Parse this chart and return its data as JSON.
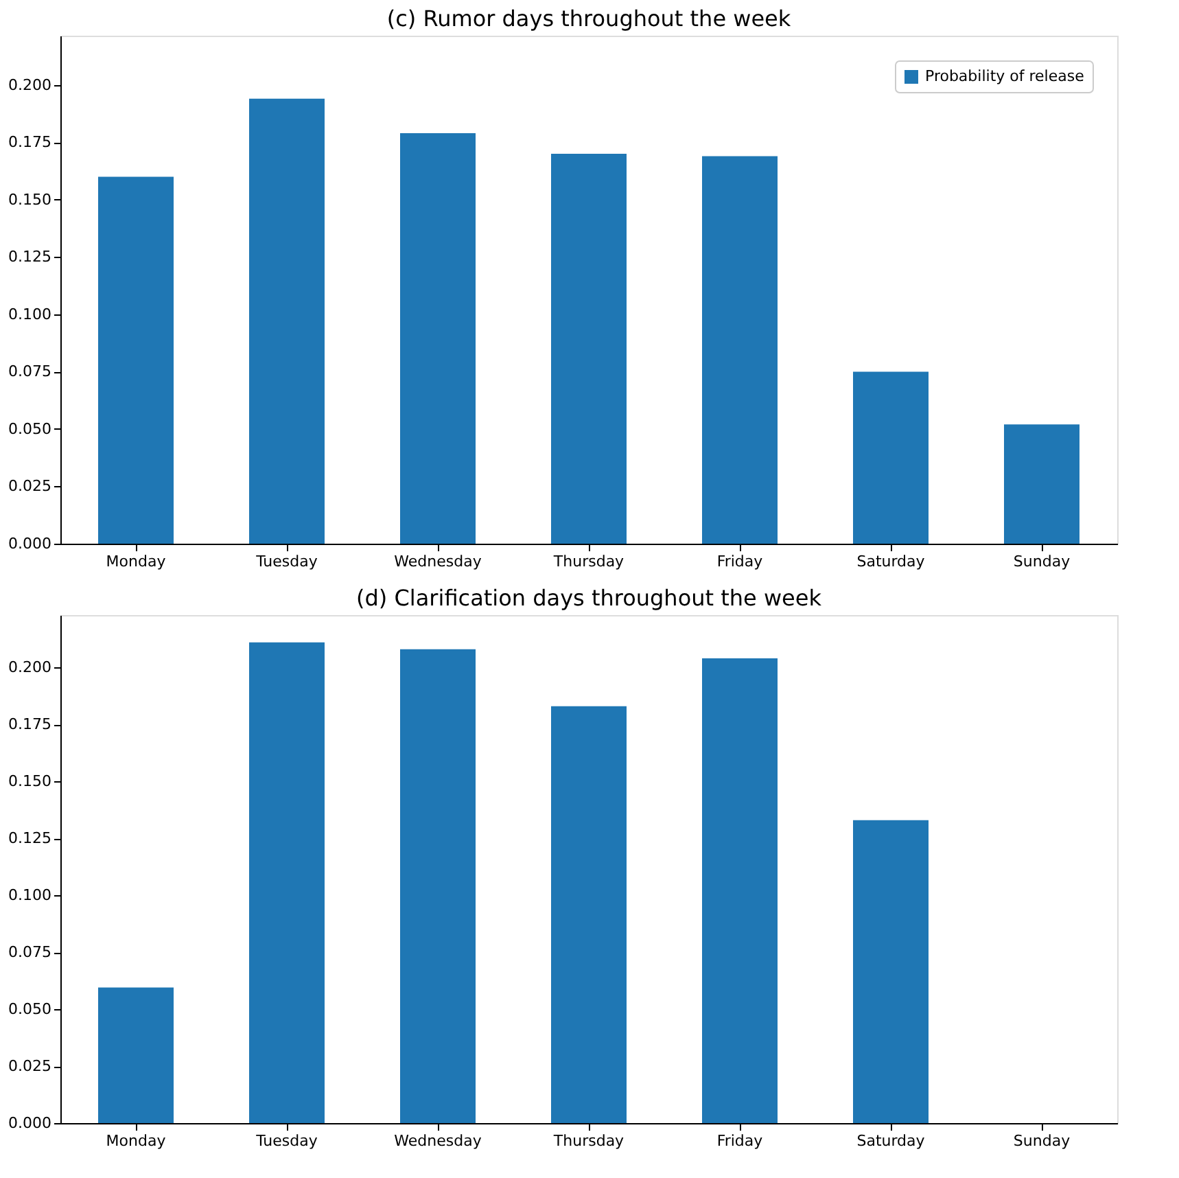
{
  "chart_data": [
    {
      "type": "bar",
      "title": "(c) Rumor days throughout the week",
      "categories": [
        "Monday",
        "Tuesday",
        "Wednesday",
        "Thursday",
        "Friday",
        "Saturday",
        "Sunday"
      ],
      "series": [
        {
          "name": "Probability of release",
          "color": "#1f77b4",
          "values": [
            0.16,
            0.194,
            0.179,
            0.17,
            0.169,
            0.075,
            0.052
          ]
        }
      ],
      "ylim": [
        0,
        0.2215
      ],
      "yticks": [
        {
          "value": 0,
          "label": "0.000"
        },
        {
          "value": 0.025,
          "label": "0.025"
        },
        {
          "value": 0.05,
          "label": "0.050"
        },
        {
          "value": 0.075,
          "label": "0.075"
        },
        {
          "value": 0.1,
          "label": "0.100"
        },
        {
          "value": 0.125,
          "label": "0.125"
        },
        {
          "value": 0.15,
          "label": "0.150"
        },
        {
          "value": 0.175,
          "label": "0.175"
        },
        {
          "value": 0.2,
          "label": "0.200"
        }
      ],
      "grid": false,
      "legend": "top right"
    },
    {
      "type": "bar",
      "title": "(d) Clarification days throughout the week",
      "categories": [
        "Monday",
        "Tuesday",
        "Wednesday",
        "Thursday",
        "Friday",
        "Saturday",
        "Sunday"
      ],
      "series": [
        {
          "name": "Probability of release",
          "color": "#1f77b4",
          "values": [
            0.0595,
            0.211,
            0.208,
            0.183,
            0.204,
            0.133,
            null
          ]
        }
      ],
      "ylim": [
        0,
        0.223
      ],
      "yticks": [
        {
          "value": 0,
          "label": "0.000"
        },
        {
          "value": 0.025,
          "label": "0.025"
        },
        {
          "value": 0.05,
          "label": "0.050"
        },
        {
          "value": 0.075,
          "label": "0.075"
        },
        {
          "value": 0.1,
          "label": "0.100"
        },
        {
          "value": 0.125,
          "label": "0.125"
        },
        {
          "value": 0.15,
          "label": "0.150"
        },
        {
          "value": 0.175,
          "label": "0.175"
        },
        {
          "value": 0.2,
          "label": "0.200"
        }
      ],
      "grid": false,
      "legend": "top right"
    }
  ]
}
